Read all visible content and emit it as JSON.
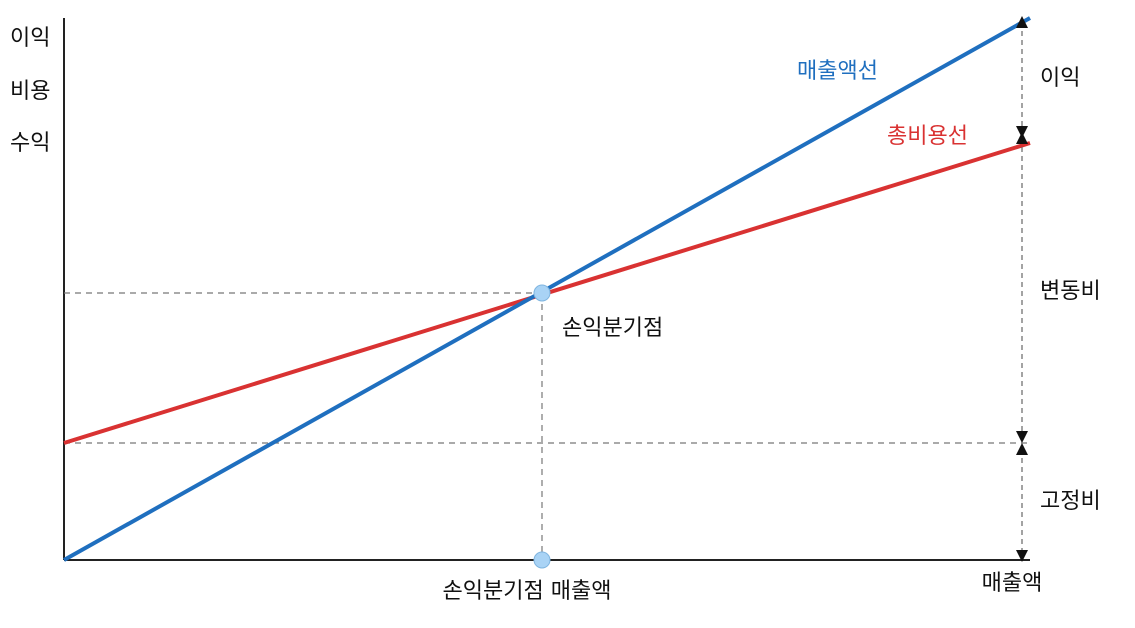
{
  "y_axis_label": {
    "line1": "이익",
    "line2": "비용",
    "line3": "수익"
  },
  "lines": {
    "sales": {
      "label": "매출액선",
      "color": "#1f6fbf"
    },
    "total_cost": {
      "label": "총비용선",
      "color": "#d93232"
    }
  },
  "break_even": {
    "label": "손익분기점",
    "point_color": "#a9d3f5"
  },
  "x_axis": {
    "break_even_sales_label": "손익분기점 매출액",
    "sales_label": "매출액"
  },
  "right_brackets": {
    "profit": "이익",
    "variable_cost": "변동비",
    "fixed_cost": "고정비"
  },
  "colors": {
    "axis": "#222222",
    "dash": "#777777",
    "arrow": "#111111",
    "text": "#111111"
  }
}
